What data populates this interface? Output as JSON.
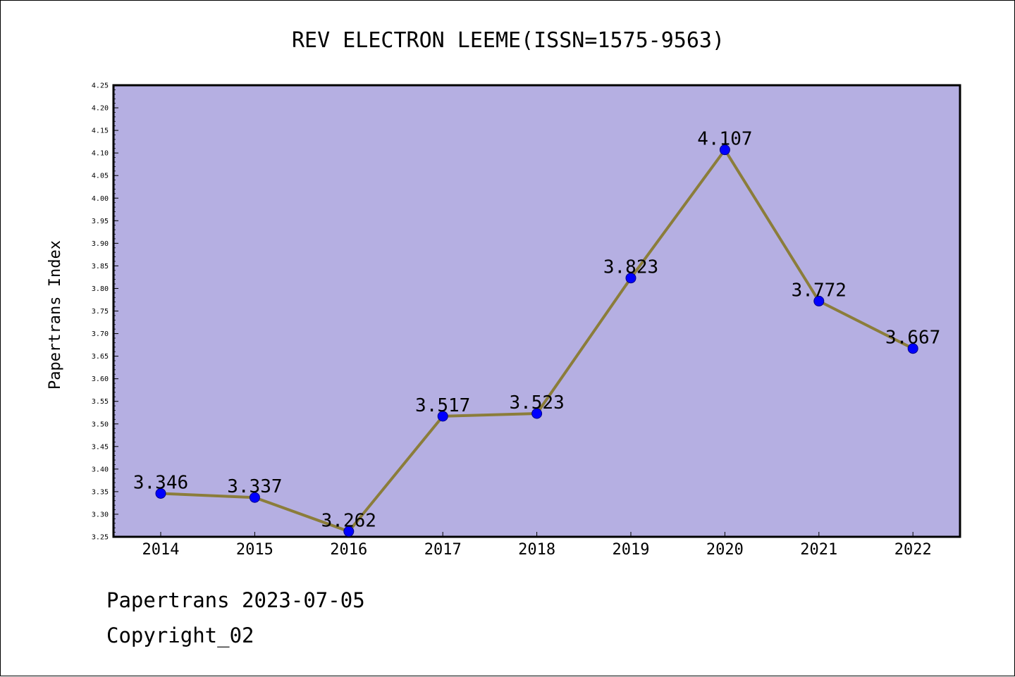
{
  "chart_data": {
    "type": "line",
    "title": "REV ELECTRON LEEME(ISSN=1575-9563)",
    "ylabel": "Papertrans Index",
    "xlabel": "",
    "categories": [
      "2014",
      "2015",
      "2016",
      "2017",
      "2018",
      "2019",
      "2020",
      "2021",
      "2022"
    ],
    "values": [
      3.346,
      3.337,
      3.262,
      3.517,
      3.523,
      3.823,
      4.107,
      3.772,
      3.667
    ],
    "data_labels": [
      "3.346",
      "3.337",
      "3.262",
      "3.517",
      "3.523",
      "3.823",
      "4.107",
      "3.772",
      "3.667"
    ],
    "ylim": [
      3.25,
      4.25
    ],
    "yticks": [
      "3.25",
      "3.30",
      "3.35",
      "3.40",
      "3.45",
      "3.50",
      "3.55",
      "3.60",
      "3.65",
      "3.70",
      "3.75",
      "3.80",
      "3.85",
      "3.90",
      "3.95",
      "4.00",
      "4.05",
      "4.10",
      "4.15",
      "4.20",
      "4.25"
    ],
    "grid": false,
    "colors": {
      "plot_background": "#b5afe2",
      "line": "#8b7d3a",
      "marker": "#0000ff"
    }
  },
  "footer": {
    "date_line": "Papertrans 2023-07-05",
    "copyright_line": "Copyright_02"
  }
}
